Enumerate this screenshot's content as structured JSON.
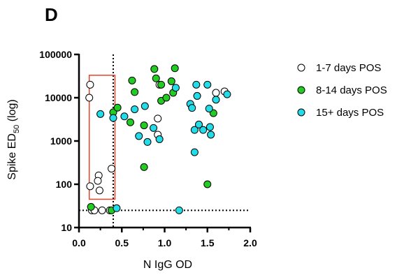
{
  "panel_label": "D",
  "colors": {
    "group1": "#ffffff",
    "group2": "#22cc22",
    "group3": "#22dde8",
    "highlight_box": "#e8432a",
    "axis": "#000000"
  },
  "chart_data": {
    "type": "scatter",
    "xlabel": "N IgG OD",
    "ylabel_main": "Spike ED",
    "ylabel_sub": "50",
    "ylabel_suffix": " (log)",
    "y_scale": "log",
    "xlim": [
      0.0,
      2.0
    ],
    "ylim": [
      10,
      100000
    ],
    "x_ticks": [
      {
        "value": 0.0,
        "label": "0.0"
      },
      {
        "value": 0.5,
        "label": "0.5"
      },
      {
        "value": 1.0,
        "label": "1.0"
      },
      {
        "value": 1.5,
        "label": "1.5"
      },
      {
        "value": 2.0,
        "label": "2.0"
      }
    ],
    "y_ticks": [
      {
        "value": 10,
        "label": "10"
      },
      {
        "value": 100,
        "label": "100"
      },
      {
        "value": 1000,
        "label": "1000"
      },
      {
        "value": 10000,
        "label": "10000"
      },
      {
        "value": 100000,
        "label": "100000"
      }
    ],
    "reference_lines": {
      "x_cutoff": 0.4,
      "y_cutoff": 25
    },
    "highlight_box": {
      "x": [
        0.12,
        0.42
      ],
      "y": [
        45,
        33000
      ]
    },
    "legend_position": "right",
    "series": [
      {
        "name": "1-7 days POS",
        "color": "#ffffff",
        "points": [
          [
            0.13,
            20000
          ],
          [
            0.12,
            10000
          ],
          [
            0.38,
            230
          ],
          [
            0.23,
            160
          ],
          [
            0.22,
            120
          ],
          [
            0.13,
            90
          ],
          [
            0.24,
            72
          ],
          [
            0.15,
            25
          ],
          [
            0.18,
            25
          ],
          [
            0.27,
            25
          ],
          [
            0.36,
            25
          ],
          [
            0.94,
            20000
          ],
          [
            0.92,
            3300
          ],
          [
            0.92,
            1400
          ],
          [
            1.6,
            13000
          ],
          [
            1.7,
            14000
          ]
        ]
      },
      {
        "name": "8-14 days POS",
        "color": "#22cc22",
        "points": [
          [
            0.4,
            4600
          ],
          [
            0.45,
            5900
          ],
          [
            0.6,
            2700
          ],
          [
            0.62,
            25000
          ],
          [
            0.65,
            13500
          ],
          [
            0.76,
            2300
          ],
          [
            0.76,
            250
          ],
          [
            0.88,
            46000
          ],
          [
            0.9,
            28000
          ],
          [
            0.96,
            20000
          ],
          [
            0.96,
            8500
          ],
          [
            1.02,
            10000
          ],
          [
            1.08,
            24000
          ],
          [
            1.12,
            48000
          ],
          [
            1.1,
            13000
          ],
          [
            1.5,
            100
          ],
          [
            1.57,
            4400
          ],
          [
            0.14,
            30
          ],
          [
            0.38,
            25
          ]
        ]
      },
      {
        "name": "15+ days POS",
        "color": "#22dde8",
        "points": [
          [
            0.25,
            4200
          ],
          [
            0.4,
            3400
          ],
          [
            0.44,
            28
          ],
          [
            0.53,
            3700
          ],
          [
            0.65,
            5400
          ],
          [
            0.7,
            1300
          ],
          [
            0.77,
            6400
          ],
          [
            0.8,
            950
          ],
          [
            0.87,
            2000
          ],
          [
            0.94,
            1100
          ],
          [
            1.13,
            17000
          ],
          [
            1.17,
            25
          ],
          [
            1.3,
            7200
          ],
          [
            1.32,
            5800
          ],
          [
            1.35,
            1800
          ],
          [
            1.35,
            550
          ],
          [
            1.37,
            20000
          ],
          [
            1.38,
            11000
          ],
          [
            1.4,
            2400
          ],
          [
            1.45,
            1800
          ],
          [
            1.5,
            20000
          ],
          [
            1.52,
            5600
          ],
          [
            1.53,
            2100
          ],
          [
            1.54,
            1400
          ],
          [
            1.6,
            9000
          ],
          [
            1.73,
            12000
          ]
        ]
      }
    ]
  }
}
